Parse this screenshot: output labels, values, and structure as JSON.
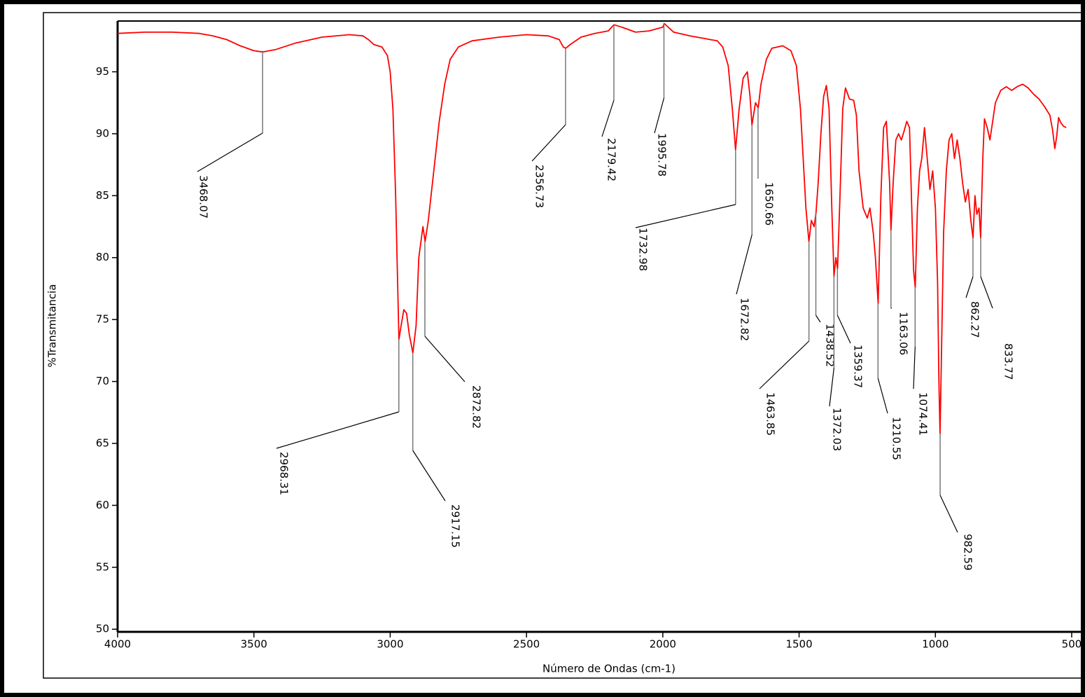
{
  "chart_data": {
    "type": "line",
    "xlabel": "Número de Ondas (cm-1)",
    "ylabel": "%Transmitancia",
    "xlim": [
      4000,
      460
    ],
    "ylim": [
      49.9,
      99.1
    ],
    "xticks": [
      4000,
      3500,
      3000,
      2500,
      2000,
      1500,
      1000,
      500
    ],
    "yticks": [
      50,
      55,
      60,
      65,
      70,
      75,
      80,
      85,
      90,
      95
    ],
    "series": [
      {
        "color": "#ff0000",
        "x": [
          4000,
          3900,
          3800,
          3700,
          3650,
          3600,
          3550,
          3500,
          3468,
          3420,
          3350,
          3250,
          3150,
          3100,
          3080,
          3060,
          3030,
          3010,
          3000,
          2990,
          2980,
          2975,
          2968,
          2960,
          2950,
          2940,
          2930,
          2917,
          2905,
          2895,
          2880,
          2872,
          2860,
          2840,
          2820,
          2800,
          2780,
          2750,
          2700,
          2600,
          2500,
          2420,
          2380,
          2365,
          2356,
          2340,
          2300,
          2250,
          2200,
          2179,
          2150,
          2100,
          2050,
          2000,
          1995,
          1960,
          1900,
          1850,
          1800,
          1780,
          1760,
          1745,
          1733,
          1720,
          1705,
          1690,
          1680,
          1673,
          1660,
          1650,
          1640,
          1620,
          1600,
          1560,
          1530,
          1510,
          1495,
          1485,
          1475,
          1464,
          1455,
          1445,
          1438,
          1430,
          1420,
          1410,
          1400,
          1390,
          1380,
          1372,
          1365,
          1359,
          1350,
          1340,
          1330,
          1315,
          1300,
          1290,
          1280,
          1265,
          1250,
          1240,
          1228,
          1220,
          1210,
          1200,
          1190,
          1180,
          1175,
          1168,
          1163,
          1155,
          1145,
          1135,
          1125,
          1115,
          1105,
          1095,
          1088,
          1080,
          1074,
          1066,
          1058,
          1050,
          1040,
          1030,
          1020,
          1010,
          1000,
          992,
          987,
          983,
          978,
          970,
          960,
          950,
          940,
          930,
          920,
          910,
          900,
          890,
          880,
          870,
          862,
          855,
          848,
          840,
          834,
          826,
          820,
          810,
          800,
          780,
          760,
          740,
          720,
          700,
          680,
          660,
          640,
          620,
          600,
          580,
          570,
          562,
          555,
          548,
          540,
          530,
          520
        ],
        "values": [
          98.1,
          98.2,
          98.2,
          98.1,
          97.9,
          97.6,
          97.1,
          96.7,
          96.6,
          96.8,
          97.3,
          97.8,
          98.0,
          97.9,
          97.6,
          97.2,
          97.0,
          96.3,
          95.0,
          92,
          85,
          80,
          73.4,
          74.5,
          75.8,
          75.5,
          73.8,
          72.3,
          74.5,
          80,
          82.5,
          81.3,
          83,
          87,
          91,
          94,
          96,
          97,
          97.5,
          97.8,
          98.0,
          97.9,
          97.6,
          97.0,
          96.9,
          97.2,
          97.8,
          98.1,
          98.3,
          98.8,
          98.6,
          98.2,
          98.3,
          98.6,
          98.9,
          98.2,
          97.9,
          97.7,
          97.5,
          97.0,
          95.5,
          92,
          88.7,
          92,
          94.5,
          95,
          93,
          90.7,
          92.5,
          92.1,
          94,
          96,
          96.9,
          97.1,
          96.7,
          95.5,
          92,
          88,
          84,
          81.3,
          83,
          82.5,
          83.6,
          86,
          90,
          93,
          93.9,
          92,
          84,
          78.5,
          80,
          79.1,
          85,
          92,
          93.7,
          92.8,
          92.7,
          91.5,
          87,
          84,
          83.2,
          84,
          82,
          80,
          76.3,
          85,
          90.5,
          91.0,
          89,
          86,
          82.2,
          86,
          89.5,
          90,
          89.5,
          90.2,
          91.0,
          90.5,
          85,
          79,
          77.6,
          84,
          87,
          88,
          90.5,
          88,
          85.5,
          87,
          84,
          78,
          70,
          65.8,
          72,
          82,
          87,
          89.5,
          90,
          88,
          89.5,
          88,
          86,
          84.5,
          85.5,
          83,
          81.6,
          85,
          83.5,
          84,
          81.6,
          88,
          91.2,
          90.5,
          89.5,
          92.5,
          93.5,
          93.8,
          93.5,
          93.8,
          94.0,
          93.7,
          93.2,
          92.8,
          92.2,
          91.5,
          90.3,
          88.8,
          89.8,
          91.3,
          90.9,
          90.6,
          90.5
        ]
      }
    ],
    "annotations": [
      {
        "text": "3468.07",
        "x": 3468.07,
        "y": 96.7
      },
      {
        "text": "2968.31",
        "x": 2968.31,
        "y": 73.4
      },
      {
        "text": "2917.15",
        "x": 2917.15,
        "y": 72.3
      },
      {
        "text": "2872.82",
        "x": 2872.82,
        "y": 81.3
      },
      {
        "text": "2356.73",
        "x": 2356.73,
        "y": 96.9
      },
      {
        "text": "2179.42",
        "x": 2179.42,
        "y": 98.8
      },
      {
        "text": "1995.78",
        "x": 1995.78,
        "y": 98.9
      },
      {
        "text": "1732.98",
        "x": 1732.98,
        "y": 88.7
      },
      {
        "text": "1672.82",
        "x": 1672.82,
        "y": 90.7
      },
      {
        "text": "1650.66",
        "x": 1650.66,
        "y": 92.1
      },
      {
        "text": "1463.85",
        "x": 1463.85,
        "y": 81.3
      },
      {
        "text": "1438.52",
        "x": 1438.52,
        "y": 83.6
      },
      {
        "text": "1372.03",
        "x": 1372.03,
        "y": 78.5
      },
      {
        "text": "1359.37",
        "x": 1359.37,
        "y": 79.1
      },
      {
        "text": "1210.55",
        "x": 1210.55,
        "y": 76.3
      },
      {
        "text": "1163.06",
        "x": 1163.06,
        "y": 82.2
      },
      {
        "text": "1074.41",
        "x": 1074.41,
        "y": 77.6
      },
      {
        "text": "982.59",
        "x": 982.59,
        "y": 65.8
      },
      {
        "text": "862.27",
        "x": 862.27,
        "y": 81.6
      },
      {
        "text": "833.77",
        "x": 833.77,
        "y": 81.6
      }
    ]
  }
}
